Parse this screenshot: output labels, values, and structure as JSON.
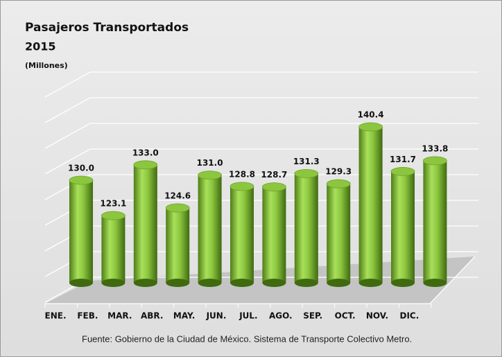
{
  "chart_data": {
    "type": "bar",
    "title": "Pasajeros Transportados",
    "subtitle": "2015",
    "y_label": "(Millones)",
    "source": "Fuente: Gobierno de la Ciudad de México. Sistema de Transporte Colectivo Metro.",
    "categories": [
      "ENE.",
      "FEB.",
      "MAR.",
      "ABR.",
      "MAY.",
      "JUN.",
      "JUL.",
      "AGO.",
      "SEP.",
      "OCT.",
      "NOV.",
      "DIC."
    ],
    "values": [
      130.0,
      123.1,
      133.0,
      124.6,
      131.0,
      128.8,
      128.7,
      131.3,
      129.3,
      140.4,
      131.7,
      133.8
    ],
    "value_labels": [
      "130.0",
      "123.1",
      "133.0",
      "124.6",
      "131.0",
      "128.8",
      "128.7",
      "131.3",
      "129.3",
      "140.4",
      "131.7",
      "133.8"
    ],
    "color": "#8cc63f",
    "ylim": [
      110,
      150
    ],
    "yticks": [
      110,
      115,
      120,
      125,
      130,
      135,
      140,
      145,
      150
    ],
    "grid": true
  }
}
